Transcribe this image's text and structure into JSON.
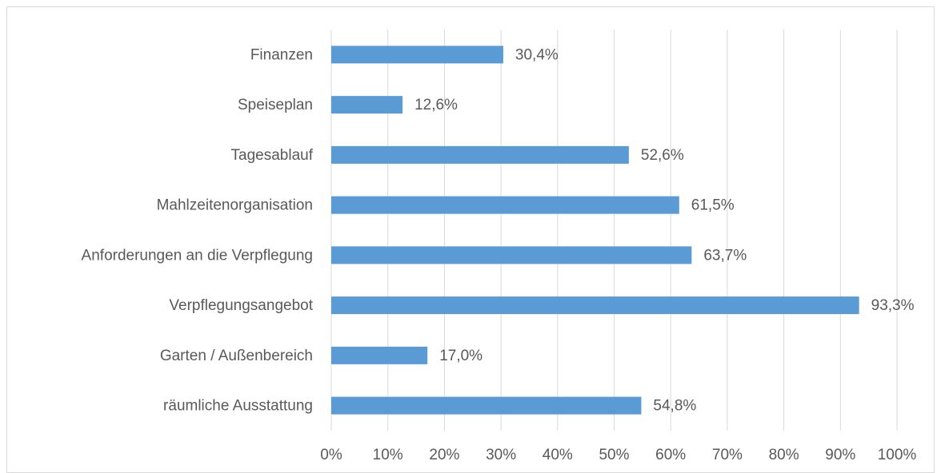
{
  "chart_data": {
    "type": "barh",
    "categories": [
      "Finanzen",
      "Speiseplan",
      "Tagesablauf",
      "Mahlzeitenorganisation",
      "Anforderungen an die Verpflegung",
      "Verpflegungsangebot",
      "Garten / Außenbereich",
      "räumliche Ausstattung"
    ],
    "values": [
      30.4,
      12.6,
      52.6,
      61.5,
      63.7,
      93.3,
      17.0,
      54.8
    ],
    "value_labels": [
      "30,4%",
      "12,6%",
      "52,6%",
      "61,5%",
      "63,7%",
      "93,3%",
      "17,0%",
      "54,8%"
    ],
    "color": "#5b9bd5",
    "xlim": [
      0,
      100
    ],
    "xticks": [
      {
        "value": 0,
        "label": "0%"
      },
      {
        "value": 10,
        "label": "10%"
      },
      {
        "value": 20,
        "label": "20%"
      },
      {
        "value": 30,
        "label": "30%"
      },
      {
        "value": 40,
        "label": "40%"
      },
      {
        "value": 50,
        "label": "50%"
      },
      {
        "value": 60,
        "label": "60%"
      },
      {
        "value": 70,
        "label": "70%"
      },
      {
        "value": 80,
        "label": "80%"
      },
      {
        "value": 90,
        "label": "90%"
      },
      {
        "value": 100,
        "label": "100%"
      }
    ],
    "grid": true
  }
}
